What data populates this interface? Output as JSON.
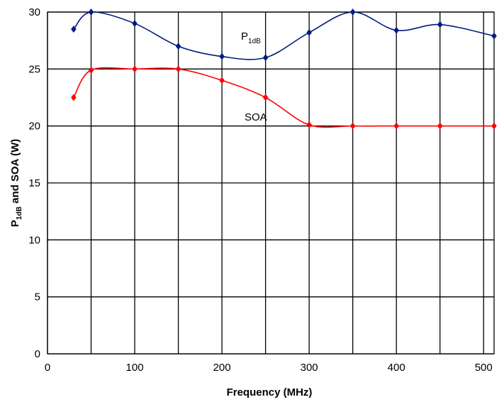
{
  "chart_data": {
    "type": "line",
    "xlabel": "Frequency (MHz)",
    "ylabel_main": "P",
    "ylabel_sub": "1dB",
    "ylabel_rest": " and SOA (W)",
    "xlim": [
      0,
      512
    ],
    "ylim": [
      0,
      30
    ],
    "xticks": [
      0,
      100,
      200,
      300,
      400,
      500
    ],
    "yticks": [
      0,
      5,
      10,
      15,
      20,
      25,
      30
    ],
    "xgrid": [
      0,
      50,
      100,
      150,
      200,
      250,
      300,
      350,
      400,
      450,
      500
    ],
    "ygrid": [
      0,
      5,
      10,
      15,
      20,
      25,
      30
    ],
    "grid": true,
    "series": [
      {
        "label_main": "P",
        "label_sub": "1dB",
        "color": "#001a80",
        "x": [
          30,
          50,
          100,
          150,
          200,
          250,
          300,
          350,
          400,
          450,
          512
        ],
        "y": [
          28.5,
          30.0,
          29.0,
          27.0,
          26.1,
          26.0,
          28.2,
          30.0,
          28.4,
          28.9,
          27.9
        ]
      },
      {
        "label": "SOA",
        "color": "#ff0000",
        "x": [
          30,
          50,
          100,
          150,
          200,
          250,
          300,
          350,
          400,
          450,
          512
        ],
        "y": [
          22.5,
          24.9,
          25.0,
          25.0,
          24.0,
          22.5,
          20.1,
          20.0,
          20.0,
          20.0,
          20.0
        ]
      }
    ]
  }
}
